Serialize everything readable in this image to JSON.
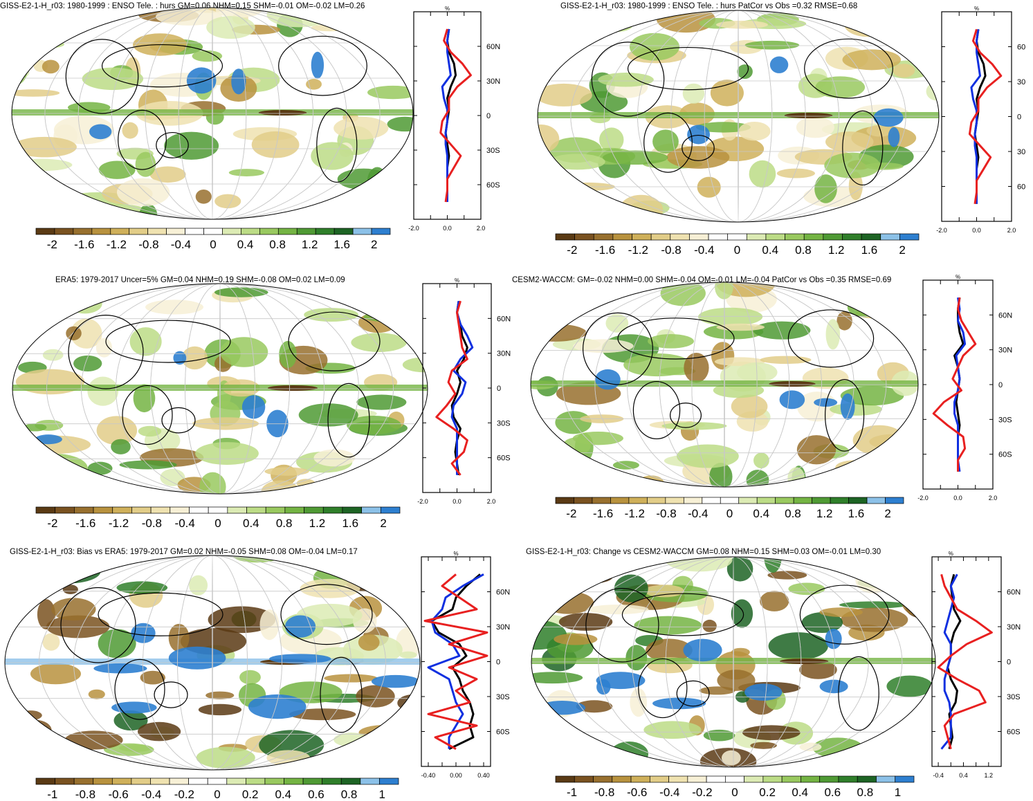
{
  "palettes": {
    "brown_green_blue": [
      "#5a3a14",
      "#7a5220",
      "#98702e",
      "#b8923e",
      "#cfb05a",
      "#e2cd88",
      "#efe2b0",
      "#f7f0d6",
      "#ffffff",
      "#ffffff",
      "#dcebb4",
      "#bcdc86",
      "#99c95f",
      "#74b443",
      "#4f9a34",
      "#2f7f2a",
      "#1d6424",
      "#8cc1e8",
      "#2d7fd0"
    ]
  },
  "chart_data": [
    {
      "type": "heatmap",
      "panel": "model-climatology",
      "title": "GISS-E2-1-H_r03: 1980-1999 : ENSO Tele. : hurs GM=0.06 NHM=0.15 SHM=-0.01 OM=-0.02 LM=0.26",
      "colorbar": {
        "labels": [
          "-2",
          "-1.6",
          "-1.2",
          "-0.8",
          "-0.4",
          "0",
          "0.4",
          "0.8",
          "1.2",
          "1.6",
          "2"
        ],
        "range": [
          -2.2,
          2.2
        ]
      },
      "zonal_profile": {
        "unit_label": "%",
        "xlim": [
          -2.0,
          2.0
        ],
        "xtick_labels": [
          "-2.0",
          "0.0",
          "2.0"
        ],
        "lat_tick_labels": [
          "60N",
          "30N",
          "0",
          "30S",
          "60S"
        ],
        "lat": [
          75,
          65,
          55,
          45,
          35,
          25,
          15,
          5,
          -5,
          -15,
          -25,
          -35,
          -45,
          -55,
          -65,
          -75
        ],
        "series": [
          {
            "color": "#000000",
            "values": [
              0.1,
              0.0,
              0.1,
              0.4,
              0.5,
              0.2,
              0.0,
              0.1,
              0.0,
              -0.1,
              0.0,
              0.1,
              0.0,
              0.0,
              0.0,
              0.0
            ]
          },
          {
            "color": "#1030e0",
            "values": [
              0.1,
              0.0,
              0.0,
              0.1,
              0.2,
              -0.3,
              -0.2,
              0.0,
              0.0,
              -0.1,
              -0.1,
              0.0,
              0.0,
              0.0,
              0.0,
              0.0
            ]
          },
          {
            "color": "#e82020",
            "values": [
              0.0,
              -0.2,
              0.2,
              0.9,
              1.4,
              0.6,
              0.1,
              0.1,
              -0.3,
              -0.4,
              0.2,
              0.8,
              0.4,
              0.0,
              0.0,
              -0.1
            ]
          }
        ]
      }
    },
    {
      "type": "heatmap",
      "panel": "model-skill",
      "title": "GISS-E2-1-H_r03: 1980-1999 : ENSO Tele. : hurs PatCor vs Obs =0.32 RMSE=0.68",
      "colorbar": {
        "labels": [
          "-2",
          "-1.6",
          "-1.2",
          "-0.8",
          "-0.4",
          "0",
          "0.4",
          "0.8",
          "1.2",
          "1.6",
          "2"
        ],
        "range": [
          -2.2,
          2.2
        ]
      },
      "zonal_profile": {
        "unit_label": "%",
        "xlim": [
          -2.0,
          2.0
        ],
        "xtick_labels": [
          "-2.0",
          "0.0",
          "2.0"
        ],
        "lat_tick_labels": [
          "60",
          "30",
          "0",
          "30",
          "60"
        ],
        "lat": [
          75,
          65,
          55,
          45,
          35,
          25,
          15,
          5,
          -5,
          -15,
          -25,
          -35,
          -45,
          -55,
          -65,
          -75
        ],
        "series": [
          {
            "color": "#000000",
            "values": [
              0.1,
              0.0,
              0.1,
              0.4,
              0.5,
              0.2,
              0.0,
              0.1,
              0.0,
              -0.1,
              0.0,
              0.1,
              0.0,
              0.0,
              0.0,
              0.0
            ]
          },
          {
            "color": "#1030e0",
            "values": [
              0.1,
              0.0,
              0.0,
              0.1,
              0.2,
              -0.3,
              -0.2,
              0.0,
              0.0,
              -0.1,
              -0.1,
              0.0,
              0.0,
              0.0,
              0.0,
              0.0
            ]
          },
          {
            "color": "#e82020",
            "values": [
              0.0,
              -0.2,
              0.2,
              0.9,
              1.4,
              0.6,
              0.1,
              0.1,
              -0.3,
              -0.4,
              0.2,
              0.8,
              0.4,
              0.0,
              0.0,
              -0.1
            ]
          }
        ]
      }
    },
    {
      "type": "heatmap",
      "panel": "observations",
      "title": "ERA5: 1979-2017 Uncer=5% GM=0.04 NHM=0.19 SHM=-0.08 OM=0.02 LM=0.09",
      "colorbar": {
        "labels": [
          "-2",
          "-1.6",
          "-1.2",
          "-0.8",
          "-0.4",
          "0",
          "0.4",
          "0.8",
          "1.2",
          "1.6",
          "2"
        ],
        "range": [
          -2.2,
          2.2
        ]
      },
      "zonal_profile": {
        "unit_label": "%",
        "xlim": [
          -2.0,
          2.0
        ],
        "xtick_labels": [
          "-2.0",
          "0.0",
          "2.0"
        ],
        "lat_tick_labels": [
          "60N",
          "30N",
          "0",
          "30S",
          "60S"
        ],
        "lat": [
          75,
          65,
          55,
          45,
          35,
          25,
          15,
          5,
          -5,
          -15,
          -25,
          -35,
          -45,
          -55,
          -65,
          -75
        ],
        "series": [
          {
            "color": "#000000",
            "values": [
              0.1,
              0.0,
              0.2,
              0.3,
              0.6,
              0.4,
              0.0,
              0.2,
              0.0,
              -0.3,
              -0.2,
              0.2,
              0.0,
              -0.1,
              0.0,
              0.1
            ]
          },
          {
            "color": "#1030e0",
            "values": [
              0.1,
              0.0,
              0.2,
              0.6,
              0.9,
              0.2,
              -0.2,
              0.5,
              0.3,
              -0.2,
              -0.3,
              0.0,
              0.0,
              0.0,
              0.0,
              0.0
            ]
          },
          {
            "color": "#e82020",
            "values": [
              0.2,
              0.0,
              0.1,
              0.2,
              0.3,
              0.6,
              -0.3,
              -0.5,
              -0.1,
              -0.6,
              -1.2,
              -0.2,
              0.6,
              0.4,
              -0.3,
              0.2
            ]
          }
        ]
      }
    },
    {
      "type": "heatmap",
      "panel": "reference-model",
      "title": "CESM2-WACCM: GM=-0.02 NHM=0.00 SHM=-0.04 OM=-0.01 LM=-0.04 PatCor vs Obs =0.35 RMSE=0.69",
      "colorbar": {
        "labels": [
          "-2",
          "-1.6",
          "-1.2",
          "-0.8",
          "-0.4",
          "0",
          "0.4",
          "0.8",
          "1.2",
          "1.6",
          "2"
        ],
        "range": [
          -2.2,
          2.2
        ]
      },
      "zonal_profile": {
        "unit_label": "%",
        "xlim": [
          -2.0,
          2.0
        ],
        "xtick_labels": [
          "-2.0",
          "0.0",
          "2.0"
        ],
        "lat_tick_labels": [
          "60N",
          "30N",
          "0",
          "30S",
          "60S"
        ],
        "lat": [
          75,
          65,
          55,
          45,
          35,
          25,
          15,
          5,
          -5,
          -15,
          -25,
          -35,
          -45,
          -55,
          -65,
          -75
        ],
        "series": [
          {
            "color": "#000000",
            "values": [
              0.1,
              0.0,
              0.0,
              0.1,
              0.3,
              -0.2,
              0.0,
              0.1,
              0.0,
              -0.1,
              0.0,
              0.1,
              0.0,
              0.0,
              0.0,
              0.0
            ]
          },
          {
            "color": "#1030e0",
            "values": [
              0.0,
              0.1,
              0.0,
              0.3,
              0.4,
              -0.1,
              0.0,
              0.1,
              0.0,
              -0.2,
              -0.2,
              0.0,
              0.0,
              0.0,
              0.0,
              0.1
            ]
          },
          {
            "color": "#e82020",
            "values": [
              0.1,
              0.0,
              0.2,
              0.6,
              1.0,
              0.3,
              0.0,
              -0.3,
              0.2,
              -0.8,
              -1.4,
              -0.6,
              0.3,
              0.4,
              0.0,
              0.0
            ]
          }
        ]
      }
    },
    {
      "type": "heatmap",
      "panel": "bias-vs-obs",
      "title": "GISS-E2-1-H_r03: Bias vs ERA5: 1979-2017 GM=0.02 NHM=-0.05 SHM=0.08 OM=-0.04 LM=0.17",
      "colorbar": {
        "labels": [
          "-1",
          "-0.8",
          "-0.6",
          "-0.4",
          "-0.2",
          "0",
          "0.2",
          "0.4",
          "0.6",
          "0.8",
          "1"
        ],
        "range": [
          -1.1,
          1.1
        ]
      },
      "zonal_profile": {
        "unit_label": "%",
        "xlim": [
          -0.5,
          0.5
        ],
        "xtick_labels": [
          "-0.40",
          "0.00",
          "0.40"
        ],
        "lat_tick_labels": [
          "60N",
          "30N",
          "0",
          "30S",
          "60S"
        ],
        "lat": [
          75,
          65,
          55,
          45,
          35,
          25,
          15,
          5,
          -5,
          -15,
          -25,
          -35,
          -45,
          -55,
          -65,
          -75
        ],
        "series": [
          {
            "color": "#000000",
            "values": [
              0.35,
              0.15,
              0.0,
              -0.05,
              -0.35,
              -0.25,
              0.05,
              0.15,
              -0.05,
              0.05,
              0.1,
              0.2,
              0.25,
              0.2,
              0.25,
              -0.1
            ]
          },
          {
            "color": "#1030e0",
            "values": [
              0.4,
              0.1,
              -0.15,
              -0.2,
              -0.35,
              -0.3,
              -0.05,
              0.05,
              -0.4,
              -0.1,
              -0.05,
              0.0,
              0.1,
              0.0,
              -0.1,
              -0.1
            ]
          },
          {
            "color": "#e82020",
            "values": [
              0.0,
              -0.2,
              0.05,
              0.3,
              -0.45,
              0.45,
              -0.1,
              0.45,
              -0.1,
              0.3,
              0.0,
              0.2,
              -0.4,
              0.3,
              -0.3,
              0.0
            ]
          }
        ]
      }
    },
    {
      "type": "heatmap",
      "panel": "change-vs-reference",
      "title": "GISS-E2-1-H_r03: Change vs CESM2-WACCM GM=0.08 NHM=0.15 SHM=0.03 OM=-0.01 LM=0.30",
      "colorbar": {
        "labels": [
          "-1",
          "-0.8",
          "-0.6",
          "-0.4",
          "-0.2",
          "0",
          "0.2",
          "0.4",
          "0.6",
          "0.8",
          "1"
        ],
        "range": [
          -1.1,
          1.1
        ]
      },
      "zonal_profile": {
        "unit_label": "%",
        "xlim": [
          -0.6,
          1.6
        ],
        "xtick_labels": [
          "-0.4",
          "0.4",
          "1.2"
        ],
        "lat_tick_labels": [
          "60N",
          "30N",
          "0",
          "30S",
          "60S"
        ],
        "lat": [
          75,
          65,
          55,
          45,
          35,
          25,
          15,
          5,
          -5,
          -15,
          -25,
          -35,
          -45,
          -55,
          -65,
          -75
        ],
        "series": [
          {
            "color": "#000000",
            "values": [
              0.1,
              0.0,
              0.05,
              0.1,
              0.3,
              0.1,
              0.0,
              0.0,
              -0.1,
              0.0,
              0.2,
              0.15,
              -0.05,
              0.0,
              0.05,
              -0.05
            ]
          },
          {
            "color": "#1030e0",
            "values": [
              0.2,
              0.0,
              0.1,
              0.0,
              -0.1,
              -0.2,
              0.0,
              0.0,
              -0.1,
              -0.2,
              -0.2,
              -0.05,
              0.0,
              0.0,
              0.0,
              -0.3
            ]
          },
          {
            "color": "#e82020",
            "values": [
              -0.3,
              -0.2,
              0.0,
              0.2,
              0.8,
              1.3,
              0.5,
              0.0,
              -0.4,
              0.2,
              0.9,
              1.1,
              0.1,
              -0.2,
              -0.1,
              0.0
            ]
          }
        ]
      }
    }
  ]
}
